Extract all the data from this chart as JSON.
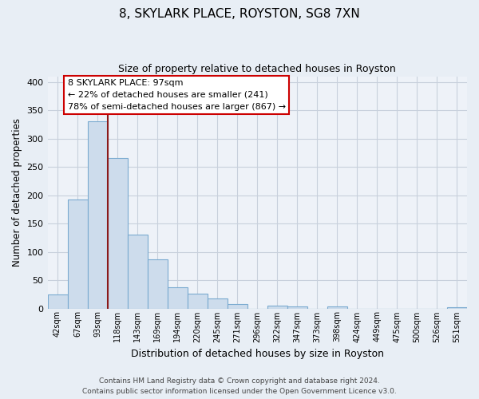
{
  "title": "8, SKYLARK PLACE, ROYSTON, SG8 7XN",
  "subtitle": "Size of property relative to detached houses in Royston",
  "xlabel": "Distribution of detached houses by size in Royston",
  "ylabel": "Number of detached properties",
  "bar_labels": [
    "42sqm",
    "67sqm",
    "93sqm",
    "118sqm",
    "143sqm",
    "169sqm",
    "194sqm",
    "220sqm",
    "245sqm",
    "271sqm",
    "296sqm",
    "322sqm",
    "347sqm",
    "373sqm",
    "398sqm",
    "424sqm",
    "449sqm",
    "475sqm",
    "500sqm",
    "526sqm",
    "551sqm"
  ],
  "bar_heights": [
    25,
    193,
    330,
    266,
    130,
    86,
    38,
    26,
    17,
    8,
    0,
    5,
    4,
    0,
    3,
    0,
    0,
    0,
    0,
    0,
    2
  ],
  "bar_color": "#cddcec",
  "bar_edge_color": "#7aaad0",
  "vline_color": "#8b1a1a",
  "annotation_text": "8 SKYLARK PLACE: 97sqm\n← 22% of detached houses are smaller (241)\n78% of semi-detached houses are larger (867) →",
  "annotation_box_color": "#ffffff",
  "annotation_box_edge": "#cc0000",
  "ylim": [
    0,
    410
  ],
  "yticks": [
    0,
    50,
    100,
    150,
    200,
    250,
    300,
    350,
    400
  ],
  "footer_line1": "Contains HM Land Registry data © Crown copyright and database right 2024.",
  "footer_line2": "Contains public sector information licensed under the Open Government Licence v3.0.",
  "background_color": "#e8eef5",
  "plot_bg_color": "#eef2f8",
  "grid_color": "#c8d0dc"
}
